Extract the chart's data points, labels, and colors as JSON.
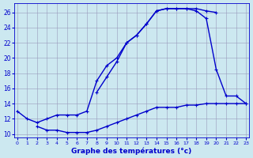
{
  "xlabel": "Graphe des températures (°c)",
  "line_color": "#0000cc",
  "bg_color": "#cce8f0",
  "grid_color": "#9999bb",
  "linewidth": 1.0,
  "markersize": 3.5,
  "ylim": [
    9.5,
    27.2
  ],
  "xlim": [
    -0.3,
    23.3
  ],
  "yticks": [
    10,
    12,
    14,
    16,
    18,
    20,
    22,
    24,
    26
  ],
  "xticks": [
    0,
    1,
    2,
    3,
    4,
    5,
    6,
    7,
    8,
    9,
    10,
    11,
    12,
    13,
    14,
    15,
    16,
    17,
    18,
    19,
    20,
    21,
    22,
    23
  ],
  "curve_top": {
    "x": [
      0,
      1,
      2,
      3,
      4,
      5,
      6,
      7,
      8,
      9,
      10,
      11,
      12,
      13,
      14,
      15,
      16,
      17,
      18,
      19,
      20
    ],
    "y": [
      13,
      12,
      11.5,
      12,
      12.5,
      12.5,
      12.5,
      13,
      17,
      19,
      20,
      22,
      23,
      24.5,
      26.2,
      26.5,
      26.5,
      26.5,
      26.5,
      26.2,
      26.0
    ]
  },
  "curve_mid": {
    "x": [
      8,
      9,
      10,
      11,
      12,
      13,
      14,
      15,
      16,
      17,
      18,
      19,
      20,
      21,
      22,
      23
    ],
    "y": [
      15.5,
      17.5,
      19.5,
      22,
      23,
      24.5,
      26.2,
      26.5,
      26.5,
      26.5,
      26.2,
      25.2,
      18.5,
      15,
      15,
      14
    ]
  },
  "curve_bot": {
    "x": [
      2,
      3,
      4,
      5,
      6,
      7,
      8,
      9,
      10,
      11,
      12,
      13,
      14,
      15,
      16,
      17,
      18,
      19,
      20,
      21,
      22,
      23
    ],
    "y": [
      11,
      10.5,
      10.5,
      10.2,
      10.2,
      10.2,
      10.5,
      11,
      11.5,
      12,
      12.5,
      13,
      13.5,
      13.5,
      13.5,
      13.8,
      13.8,
      14,
      14,
      14,
      14,
      14
    ]
  }
}
